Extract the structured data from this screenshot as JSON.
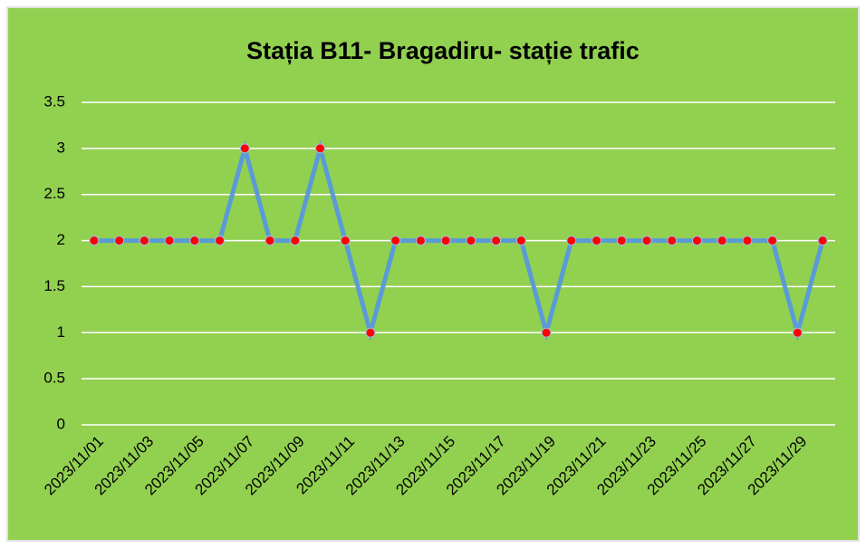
{
  "chart_data": {
    "type": "line",
    "title": "Stația B11- Bragadiru- stație trafic",
    "categories": [
      "2023/11/01",
      null,
      "2023/11/03",
      null,
      "2023/11/05",
      null,
      "2023/11/07",
      null,
      "2023/11/09",
      null,
      "2023/11/11",
      null,
      "2023/11/13",
      null,
      "2023/11/15",
      null,
      "2023/11/17",
      null,
      "2023/11/19",
      null,
      "2023/11/21",
      null,
      "2023/11/23",
      null,
      "2023/11/25",
      null,
      "2023/11/27",
      null,
      "2023/11/29",
      null
    ],
    "values": [
      2,
      2,
      2,
      2,
      2,
      2,
      3,
      2,
      2,
      3,
      2,
      1,
      2,
      2,
      2,
      2,
      2,
      2,
      1,
      2,
      2,
      2,
      2,
      2,
      2,
      2,
      2,
      2,
      1,
      2
    ],
    "color": "#5b9bd5",
    "marker_color": "#ff0000",
    "background": "#92d050",
    "ylim": [
      0,
      3.5
    ],
    "yticks": [
      0,
      0.5,
      1,
      1.5,
      2,
      2.5,
      3,
      3.5
    ],
    "grid": true
  }
}
